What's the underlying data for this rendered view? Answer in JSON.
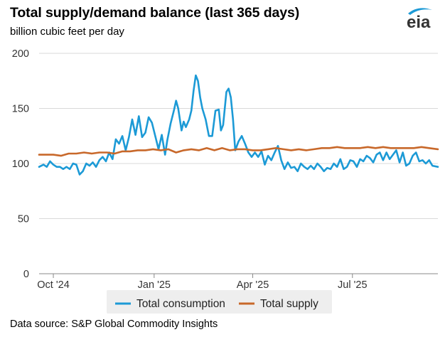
{
  "header": {
    "title": "Total supply/demand balance (last 365 days)",
    "subtitle": "billion cubic feet per day",
    "logo_text": "eia"
  },
  "footer": {
    "source": "Data source: S&P Global Commodity Insights"
  },
  "colors": {
    "consumption": "#1c9ad6",
    "supply": "#c8682a",
    "grid": "#d9d9d9",
    "axis": "#888888",
    "logo_text": "#333333",
    "logo_swoosh": "#1c9ad6"
  },
  "chart_data": {
    "type": "line",
    "title": "Total supply/demand balance (last 365 days)",
    "ylabel": "billion cubic feet per day",
    "xlabel": "",
    "ylim": [
      0,
      200
    ],
    "yticks": [
      0,
      50,
      100,
      150,
      200
    ],
    "x_range": [
      "2024-09-18",
      "2025-09-17"
    ],
    "xticks": [
      {
        "label": "Oct '24",
        "x": "2024-10-01"
      },
      {
        "label": "Jan '25",
        "x": "2025-01-01"
      },
      {
        "label": "Apr '25",
        "x": "2025-04-01"
      },
      {
        "label": "Jul '25",
        "x": "2025-07-01"
      }
    ],
    "legend": {
      "placement": "bottom-center"
    },
    "series": [
      {
        "name": "Total consumption",
        "color": "#1c9ad6",
        "points": [
          [
            "2024-09-18",
            97
          ],
          [
            "2024-09-22",
            99
          ],
          [
            "2024-09-25",
            97
          ],
          [
            "2024-09-28",
            102
          ],
          [
            "2024-10-01",
            99
          ],
          [
            "2024-10-04",
            97
          ],
          [
            "2024-10-07",
            97
          ],
          [
            "2024-10-10",
            95
          ],
          [
            "2024-10-13",
            97
          ],
          [
            "2024-10-16",
            95
          ],
          [
            "2024-10-19",
            100
          ],
          [
            "2024-10-22",
            99
          ],
          [
            "2024-10-25",
            90
          ],
          [
            "2024-10-28",
            93
          ],
          [
            "2024-10-31",
            100
          ],
          [
            "2024-11-03",
            98
          ],
          [
            "2024-11-06",
            101
          ],
          [
            "2024-11-09",
            97
          ],
          [
            "2024-11-12",
            103
          ],
          [
            "2024-11-15",
            106
          ],
          [
            "2024-11-18",
            102
          ],
          [
            "2024-11-21",
            110
          ],
          [
            "2024-11-24",
            104
          ],
          [
            "2024-11-27",
            122
          ],
          [
            "2024-11-30",
            118
          ],
          [
            "2024-12-03",
            125
          ],
          [
            "2024-12-06",
            112
          ],
          [
            "2024-12-09",
            124
          ],
          [
            "2024-12-12",
            140
          ],
          [
            "2024-12-15",
            126
          ],
          [
            "2024-12-18",
            143
          ],
          [
            "2024-12-21",
            124
          ],
          [
            "2024-12-24",
            128
          ],
          [
            "2024-12-27",
            142
          ],
          [
            "2024-12-30",
            137
          ],
          [
            "2025-01-02",
            125
          ],
          [
            "2025-01-05",
            113
          ],
          [
            "2025-01-08",
            126
          ],
          [
            "2025-01-11",
            108
          ],
          [
            "2025-01-13",
            121
          ],
          [
            "2025-01-16",
            136
          ],
          [
            "2025-01-19",
            148
          ],
          [
            "2025-01-21",
            157
          ],
          [
            "2025-01-23",
            150
          ],
          [
            "2025-01-26",
            130
          ],
          [
            "2025-01-28",
            138
          ],
          [
            "2025-01-30",
            133
          ],
          [
            "2025-02-02",
            140
          ],
          [
            "2025-02-04",
            148
          ],
          [
            "2025-02-06",
            166
          ],
          [
            "2025-02-08",
            180
          ],
          [
            "2025-02-10",
            175
          ],
          [
            "2025-02-12",
            160
          ],
          [
            "2025-02-14",
            150
          ],
          [
            "2025-02-17",
            140
          ],
          [
            "2025-02-20",
            125
          ],
          [
            "2025-02-23",
            125
          ],
          [
            "2025-02-26",
            148
          ],
          [
            "2025-03-01",
            149
          ],
          [
            "2025-03-03",
            130
          ],
          [
            "2025-03-05",
            135
          ],
          [
            "2025-03-08",
            165
          ],
          [
            "2025-03-10",
            168
          ],
          [
            "2025-03-12",
            160
          ],
          [
            "2025-03-14",
            140
          ],
          [
            "2025-03-16",
            112
          ],
          [
            "2025-03-19",
            120
          ],
          [
            "2025-03-22",
            125
          ],
          [
            "2025-03-25",
            118
          ],
          [
            "2025-03-28",
            110
          ],
          [
            "2025-03-31",
            106
          ],
          [
            "2025-04-03",
            110
          ],
          [
            "2025-04-06",
            106
          ],
          [
            "2025-04-09",
            111
          ],
          [
            "2025-04-12",
            99
          ],
          [
            "2025-04-15",
            107
          ],
          [
            "2025-04-18",
            103
          ],
          [
            "2025-04-21",
            110
          ],
          [
            "2025-04-24",
            116
          ],
          [
            "2025-04-27",
            103
          ],
          [
            "2025-04-30",
            95
          ],
          [
            "2025-05-03",
            101
          ],
          [
            "2025-05-06",
            96
          ],
          [
            "2025-05-09",
            97
          ],
          [
            "2025-05-12",
            93
          ],
          [
            "2025-05-15",
            100
          ],
          [
            "2025-05-18",
            97
          ],
          [
            "2025-05-21",
            95
          ],
          [
            "2025-05-24",
            98
          ],
          [
            "2025-05-27",
            95
          ],
          [
            "2025-05-30",
            100
          ],
          [
            "2025-06-02",
            97
          ],
          [
            "2025-06-05",
            93
          ],
          [
            "2025-06-08",
            96
          ],
          [
            "2025-06-11",
            95
          ],
          [
            "2025-06-14",
            100
          ],
          [
            "2025-06-17",
            97
          ],
          [
            "2025-06-20",
            104
          ],
          [
            "2025-06-23",
            95
          ],
          [
            "2025-06-26",
            97
          ],
          [
            "2025-06-29",
            103
          ],
          [
            "2025-07-02",
            102
          ],
          [
            "2025-07-05",
            97
          ],
          [
            "2025-07-08",
            104
          ],
          [
            "2025-07-11",
            102
          ],
          [
            "2025-07-14",
            107
          ],
          [
            "2025-07-17",
            105
          ],
          [
            "2025-07-20",
            101
          ],
          [
            "2025-07-23",
            108
          ],
          [
            "2025-07-26",
            110
          ],
          [
            "2025-07-29",
            103
          ],
          [
            "2025-08-01",
            110
          ],
          [
            "2025-08-04",
            104
          ],
          [
            "2025-08-07",
            108
          ],
          [
            "2025-08-10",
            112
          ],
          [
            "2025-08-13",
            101
          ],
          [
            "2025-08-16",
            110
          ],
          [
            "2025-08-19",
            98
          ],
          [
            "2025-08-22",
            100
          ],
          [
            "2025-08-25",
            107
          ],
          [
            "2025-08-28",
            110
          ],
          [
            "2025-08-31",
            102
          ],
          [
            "2025-09-03",
            103
          ],
          [
            "2025-09-06",
            100
          ],
          [
            "2025-09-09",
            103
          ],
          [
            "2025-09-12",
            98
          ],
          [
            "2025-09-17",
            97
          ]
        ]
      },
      {
        "name": "Total supply",
        "color": "#c8682a",
        "points": [
          [
            "2024-09-18",
            108
          ],
          [
            "2024-09-25",
            108
          ],
          [
            "2024-10-01",
            108
          ],
          [
            "2024-10-08",
            107
          ],
          [
            "2024-10-15",
            109
          ],
          [
            "2024-10-22",
            109
          ],
          [
            "2024-10-29",
            110
          ],
          [
            "2024-11-05",
            109
          ],
          [
            "2024-11-12",
            110
          ],
          [
            "2024-11-19",
            110
          ],
          [
            "2024-11-26",
            109
          ],
          [
            "2024-12-03",
            111
          ],
          [
            "2024-12-10",
            111
          ],
          [
            "2024-12-17",
            112
          ],
          [
            "2024-12-24",
            112
          ],
          [
            "2024-12-31",
            113
          ],
          [
            "2025-01-07",
            112
          ],
          [
            "2025-01-14",
            113
          ],
          [
            "2025-01-21",
            110
          ],
          [
            "2025-01-28",
            112
          ],
          [
            "2025-02-04",
            113
          ],
          [
            "2025-02-11",
            112
          ],
          [
            "2025-02-18",
            114
          ],
          [
            "2025-02-25",
            112
          ],
          [
            "2025-03-04",
            114
          ],
          [
            "2025-03-11",
            112
          ],
          [
            "2025-03-18",
            113
          ],
          [
            "2025-03-25",
            113
          ],
          [
            "2025-04-01",
            112
          ],
          [
            "2025-04-08",
            112
          ],
          [
            "2025-04-15",
            113
          ],
          [
            "2025-04-22",
            114
          ],
          [
            "2025-04-29",
            113
          ],
          [
            "2025-05-06",
            112
          ],
          [
            "2025-05-13",
            113
          ],
          [
            "2025-05-20",
            112
          ],
          [
            "2025-05-27",
            113
          ],
          [
            "2025-06-03",
            114
          ],
          [
            "2025-06-10",
            114
          ],
          [
            "2025-06-17",
            115
          ],
          [
            "2025-06-24",
            114
          ],
          [
            "2025-07-01",
            114
          ],
          [
            "2025-07-08",
            114
          ],
          [
            "2025-07-15",
            115
          ],
          [
            "2025-07-22",
            114
          ],
          [
            "2025-07-29",
            115
          ],
          [
            "2025-08-05",
            114
          ],
          [
            "2025-08-12",
            114
          ],
          [
            "2025-08-19",
            114
          ],
          [
            "2025-08-26",
            114
          ],
          [
            "2025-09-02",
            115
          ],
          [
            "2025-09-09",
            114
          ],
          [
            "2025-09-17",
            113
          ]
        ]
      }
    ]
  }
}
